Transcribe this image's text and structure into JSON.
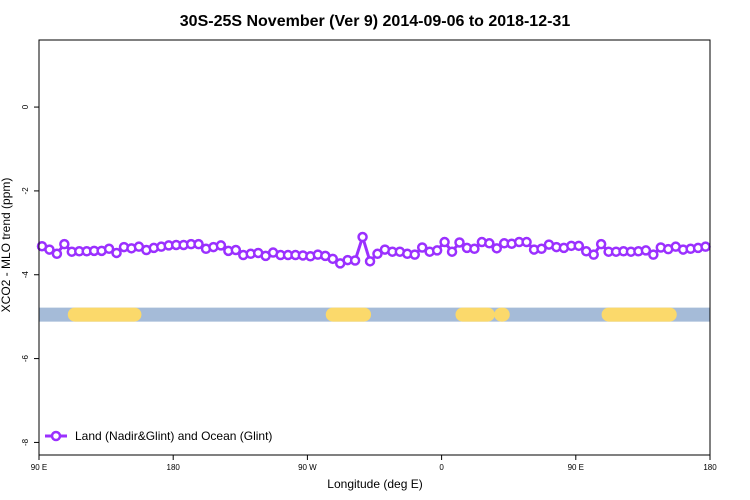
{
  "chart_data": {
    "type": "line",
    "title": "30S-25S November (Ver 9)   2014-09-06 to 2018-12-31",
    "xlabel": "Longitude (deg E)",
    "ylabel": "XCO2 - MLO trend (ppm)",
    "x_ticks": [
      {
        "value": 90,
        "label": "90 E"
      },
      {
        "value": 180,
        "label": "180"
      },
      {
        "value": 270,
        "label": "90 W"
      },
      {
        "value": 360,
        "label": "0"
      },
      {
        "value": 450,
        "label": "90 E"
      },
      {
        "value": 540,
        "label": "180"
      }
    ],
    "y_ticks": [
      {
        "value": 0,
        "label": "0"
      },
      {
        "value": -2,
        "label": "-2"
      },
      {
        "value": -4,
        "label": "-4"
      },
      {
        "value": -6,
        "label": "-6"
      },
      {
        "value": -8,
        "label": "-8"
      }
    ],
    "xlim": [
      90,
      540
    ],
    "ylim": [
      -8.3,
      1.6
    ],
    "grid": false,
    "legend_position": "bottom-left",
    "series": [
      {
        "name": "Land (Nadir&Glint) and Ocean (Glint)",
        "color": "#9b30ff",
        "x": [
          92,
          97,
          102,
          107,
          112,
          117,
          122,
          127,
          132,
          137,
          142,
          147,
          152,
          157,
          162,
          167,
          172,
          177,
          182,
          187,
          192,
          197,
          202,
          207,
          212,
          217,
          222,
          227,
          232,
          237,
          242,
          247,
          252,
          257,
          262,
          267,
          272,
          277,
          282,
          287,
          292,
          297,
          302,
          307,
          312,
          317,
          322,
          327,
          332,
          337,
          342,
          347,
          352,
          357,
          362,
          367,
          372,
          377,
          382,
          387,
          392,
          397,
          402,
          407,
          412,
          417,
          422,
          427,
          432,
          437,
          442,
          447,
          452,
          457,
          462,
          467,
          472,
          477,
          482,
          487,
          492,
          497,
          502,
          507,
          512,
          517,
          522,
          527,
          532,
          537
        ],
        "y": [
          -3.32,
          -3.4,
          -3.5,
          -3.27,
          -3.45,
          -3.44,
          -3.44,
          -3.43,
          -3.43,
          -3.38,
          -3.48,
          -3.34,
          -3.37,
          -3.33,
          -3.41,
          -3.36,
          -3.33,
          -3.3,
          -3.29,
          -3.29,
          -3.27,
          -3.27,
          -3.38,
          -3.34,
          -3.3,
          -3.43,
          -3.41,
          -3.53,
          -3.5,
          -3.48,
          -3.55,
          -3.47,
          -3.53,
          -3.53,
          -3.53,
          -3.54,
          -3.56,
          -3.52,
          -3.55,
          -3.62,
          -3.73,
          -3.65,
          -3.66,
          -3.1,
          -3.68,
          -3.5,
          -3.4,
          -3.45,
          -3.45,
          -3.5,
          -3.52,
          -3.35,
          -3.45,
          -3.42,
          -3.22,
          -3.45,
          -3.23,
          -3.36,
          -3.38,
          -3.22,
          -3.25,
          -3.37,
          -3.25,
          -3.26,
          -3.22,
          -3.22,
          -3.4,
          -3.38,
          -3.28,
          -3.34,
          -3.36,
          -3.31,
          -3.31,
          -3.44,
          -3.52,
          -3.27,
          -3.45,
          -3.45,
          -3.44,
          -3.45,
          -3.44,
          -3.42,
          -3.52,
          -3.35,
          -3.39,
          -3.33,
          -3.4,
          -3.38,
          -3.36,
          -3.33
        ]
      }
    ],
    "surface_bar": {
      "y": -4.95,
      "ocean_color": "#a5bbd8",
      "land_color": "#fbd96b",
      "land_segments": [
        [
          114,
          154
        ],
        [
          287,
          308
        ],
        [
          374,
          391
        ],
        [
          400,
          401
        ],
        [
          472,
          513
        ]
      ]
    }
  }
}
